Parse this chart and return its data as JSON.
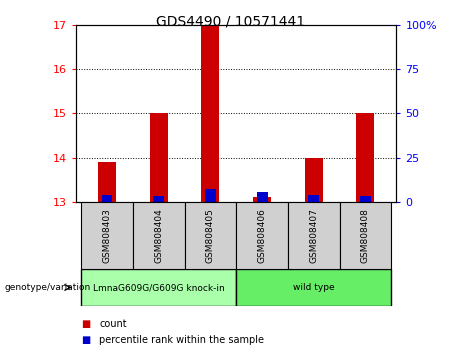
{
  "title": "GDS4490 / 10571441",
  "samples": [
    "GSM808403",
    "GSM808404",
    "GSM808405",
    "GSM808406",
    "GSM808407",
    "GSM808408"
  ],
  "red_values": [
    13.9,
    15.0,
    17.0,
    13.1,
    14.0,
    15.0
  ],
  "blue_values": [
    13.15,
    13.12,
    13.3,
    13.22,
    13.15,
    13.12
  ],
  "red_color": "#cc0000",
  "blue_color": "#0000cc",
  "ylim_left": [
    13,
    17
  ],
  "ylim_right": [
    0,
    100
  ],
  "yticks_left": [
    13,
    14,
    15,
    16,
    17
  ],
  "yticks_right": [
    0,
    25,
    50,
    75,
    100
  ],
  "ytick_labels_right": [
    "0",
    "25",
    "50",
    "75",
    "100%"
  ],
  "groups": [
    {
      "label": "LmnaG609G/G609G knock-in",
      "color": "#aaffaa",
      "start": 0,
      "end": 3
    },
    {
      "label": "wild type",
      "color": "#66ee66",
      "start": 3,
      "end": 6
    }
  ],
  "group_label_prefix": "genotype/variation",
  "legend_items": [
    {
      "label": "count",
      "color": "#cc0000"
    },
    {
      "label": "percentile rank within the sample",
      "color": "#0000cc"
    }
  ],
  "bar_width": 0.35,
  "background_color": "#ffffff",
  "sample_box_color": "#d0d0d0"
}
